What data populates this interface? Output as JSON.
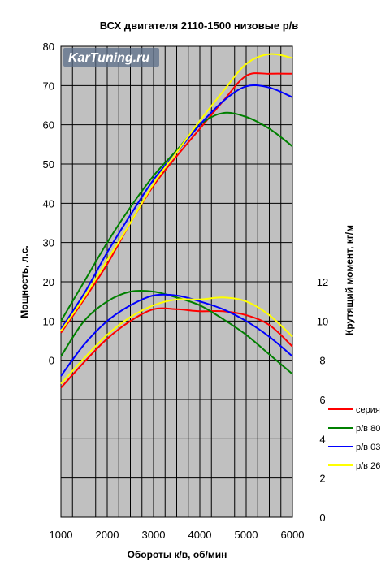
{
  "chart_data": {
    "type": "line",
    "title": "ВСХ двигателя 2110-1500 низовые р/в",
    "xlabel": "Обороты к/в, об/мин",
    "ylabel_left": "Мощность, л.с.",
    "ylabel_right": "Крутящий момент, кг/м",
    "watermark": "KarTuning.ru",
    "x_ticks": [
      "1000",
      "2000",
      "3000",
      "4000",
      "5000",
      "6000"
    ],
    "left_ticks": [
      "0",
      "10",
      "20",
      "30",
      "40",
      "50",
      "60",
      "70",
      "80"
    ],
    "right_ticks": [
      "0",
      "2",
      "4",
      "6",
      "8",
      "10",
      "12"
    ],
    "xlim": [
      1000,
      6000
    ],
    "power_axis": {
      "values_shown": [
        0,
        80
      ],
      "range_in_plot": [
        -40,
        80
      ]
    },
    "torque_axis": {
      "values_shown": [
        0,
        12
      ],
      "range_in_plot": [
        0,
        24
      ]
    },
    "grid": true,
    "legend_position": "bottom-right",
    "plot_background": "#c0c0c0",
    "series": [
      {
        "name": "серия",
        "color": "#ff0000",
        "power": [
          [
            1000,
            7
          ],
          [
            1500,
            15.5
          ],
          [
            2000,
            24.5
          ],
          [
            2500,
            35
          ],
          [
            3000,
            44.5
          ],
          [
            3500,
            52
          ],
          [
            4000,
            59
          ],
          [
            4500,
            66
          ],
          [
            5000,
            72.5
          ],
          [
            5500,
            73
          ],
          [
            6000,
            73
          ]
        ],
        "torque": [
          [
            1000,
            6.6
          ],
          [
            1500,
            7.9
          ],
          [
            2000,
            9.1
          ],
          [
            2500,
            10.0
          ],
          [
            3000,
            10.6
          ],
          [
            3500,
            10.6
          ],
          [
            4000,
            10.5
          ],
          [
            4500,
            10.5
          ],
          [
            5000,
            10.3
          ],
          [
            5500,
            9.8
          ],
          [
            6000,
            8.7
          ]
        ]
      },
      {
        "name": "р/в 80",
        "color": "#008000",
        "power": [
          [
            1000,
            10
          ],
          [
            1500,
            20
          ],
          [
            2000,
            30
          ],
          [
            2500,
            39
          ],
          [
            3000,
            47
          ],
          [
            3500,
            53.5
          ],
          [
            4000,
            60
          ],
          [
            4500,
            63
          ],
          [
            5000,
            62
          ],
          [
            5500,
            59
          ],
          [
            6000,
            54.5
          ]
        ],
        "torque": [
          [
            1000,
            8.2
          ],
          [
            1500,
            10.0
          ],
          [
            2000,
            11.0
          ],
          [
            2500,
            11.5
          ],
          [
            3000,
            11.5
          ],
          [
            3500,
            11.2
          ],
          [
            4000,
            10.8
          ],
          [
            4500,
            10.1
          ],
          [
            5000,
            9.3
          ],
          [
            5500,
            8.3
          ],
          [
            6000,
            7.3
          ]
        ]
      },
      {
        "name": "р/в 03",
        "color": "#0000ff",
        "power": [
          [
            1000,
            8
          ],
          [
            1500,
            17
          ],
          [
            2000,
            27.5
          ],
          [
            2500,
            37
          ],
          [
            3000,
            46
          ],
          [
            3500,
            53
          ],
          [
            4000,
            60
          ],
          [
            4500,
            66
          ],
          [
            5000,
            69.8
          ],
          [
            5500,
            69.5
          ],
          [
            6000,
            67
          ]
        ],
        "torque": [
          [
            1000,
            7.2
          ],
          [
            1500,
            8.8
          ],
          [
            2000,
            10.0
          ],
          [
            2500,
            10.8
          ],
          [
            3000,
            11.3
          ],
          [
            3500,
            11.3
          ],
          [
            4000,
            11.0
          ],
          [
            4500,
            10.6
          ],
          [
            5000,
            10.0
          ],
          [
            5500,
            9.2
          ],
          [
            6000,
            8.2
          ]
        ]
      },
      {
        "name": "р/в 26",
        "color": "#ffff00",
        "power": [
          [
            1000,
            7.5
          ],
          [
            1500,
            16
          ],
          [
            2000,
            25.5
          ],
          [
            2500,
            35
          ],
          [
            3000,
            45
          ],
          [
            3500,
            53
          ],
          [
            4000,
            61
          ],
          [
            4500,
            68.5
          ],
          [
            5000,
            75.5
          ],
          [
            5500,
            78
          ],
          [
            6000,
            77
          ]
        ],
        "torque": [
          [
            1000,
            6.8
          ],
          [
            1500,
            8.1
          ],
          [
            2000,
            9.3
          ],
          [
            2500,
            10.2
          ],
          [
            3000,
            10.8
          ],
          [
            3500,
            11.1
          ],
          [
            4000,
            11.1
          ],
          [
            4500,
            11.2
          ],
          [
            5000,
            11.0
          ],
          [
            5500,
            10.3
          ],
          [
            6000,
            9.2
          ]
        ]
      }
    ]
  }
}
